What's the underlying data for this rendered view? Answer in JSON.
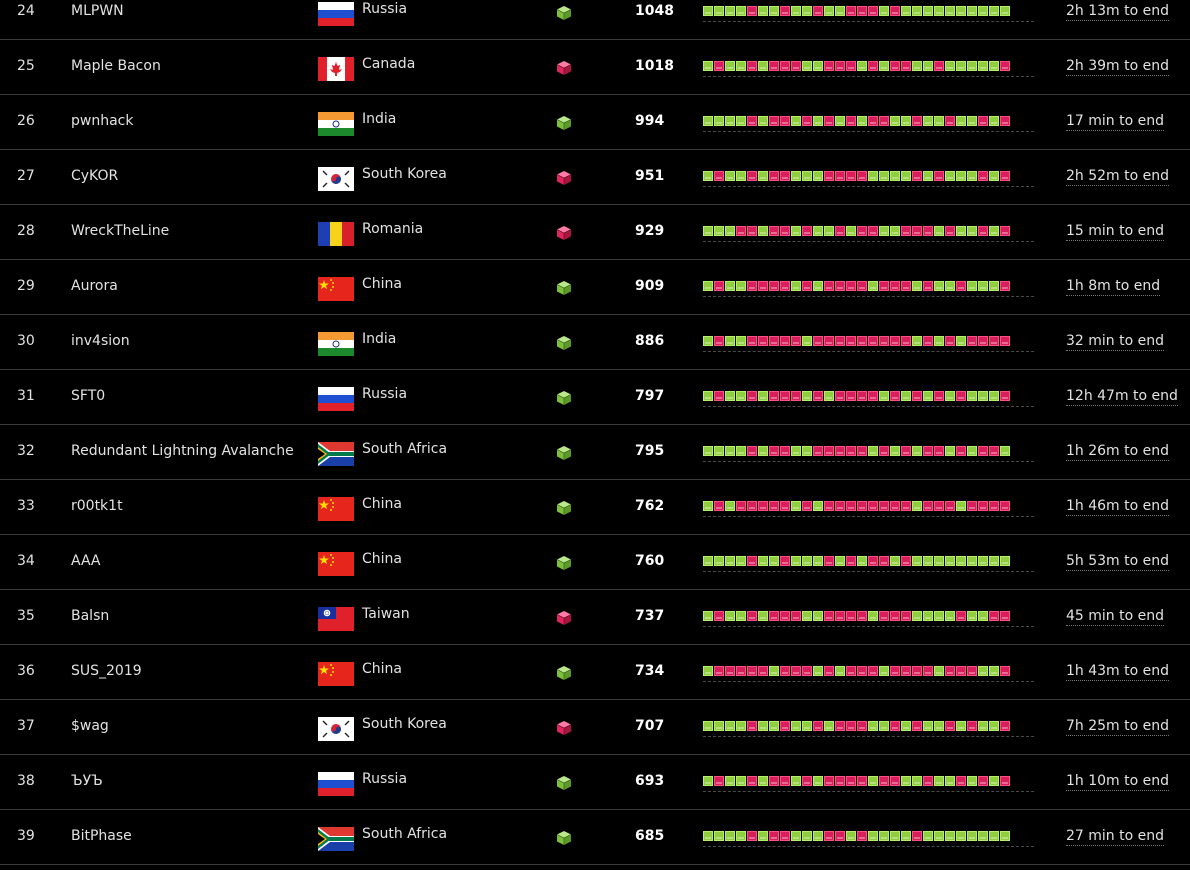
{
  "colors": {
    "background": "#000000",
    "up": "#8fce3e",
    "down": "#d81e5b",
    "text": "#e2e2e2"
  },
  "rows": [
    {
      "rank": "24",
      "team": "MLPWN",
      "country": "Russia",
      "flag": "russia",
      "cube": "green",
      "score": "1048",
      "eta": "2h 13m to end",
      "pattern": "GGGGRGGRGGRGGRRRGRGGGGGGGGGG"
    },
    {
      "rank": "25",
      "team": "Maple Bacon",
      "country": "Canada",
      "flag": "canada",
      "cube": "red",
      "score": "1018",
      "eta": "2h 39m to end",
      "pattern": "GRGGRGRRRGGRRRGRGRRGGRGGGGGR"
    },
    {
      "rank": "26",
      "team": "pwnhack",
      "country": "India",
      "flag": "india",
      "cube": "green",
      "score": "994",
      "eta": "17 min to end",
      "pattern": "GGGGRGRRGRGRGRGRRGGRGGRGGRGR"
    },
    {
      "rank": "27",
      "team": "CyKOR",
      "country": "South Korea",
      "flag": "south_korea",
      "cube": "red",
      "score": "951",
      "eta": "2h 52m to end",
      "pattern": "GRGGRGRRGGGRRRRGGGGRGRGGGRGR"
    },
    {
      "rank": "28",
      "team": "WreckTheLine",
      "country": "Romania",
      "flag": "romania",
      "cube": "red",
      "score": "929",
      "eta": "15 min to end",
      "pattern": "GGGRRGRRGRGGRGRRGGRRRGRGGRGR"
    },
    {
      "rank": "29",
      "team": "Aurora",
      "country": "China",
      "flag": "china",
      "cube": "green",
      "score": "909",
      "eta": "1h 8m to end",
      "pattern": "GRGGRRRRGRGRRRRGRRRGRGGRGGGR"
    },
    {
      "rank": "30",
      "team": "inv4sion",
      "country": "India",
      "flag": "india",
      "cube": "green",
      "score": "886",
      "eta": "32 min to end",
      "pattern": "GRGGRRRRRGRRRRRRRRRGRGRGRRRR"
    },
    {
      "rank": "31",
      "team": "SFT0",
      "country": "Russia",
      "flag": "russia",
      "cube": "green",
      "score": "797",
      "eta": "12h 47m to end",
      "pattern": "GRGGRGRRRGRGRRRRGRGRGRGRGGGR"
    },
    {
      "rank": "32",
      "team": "Redundant Lightning Avalanche",
      "country": "South Africa",
      "flag": "south_africa",
      "cube": "green",
      "score": "795",
      "eta": "1h 26m to end",
      "pattern": "GGGGRGRRGGRRRRRGRGRGRRGRGRRG"
    },
    {
      "rank": "33",
      "team": "r00tk1t",
      "country": "China",
      "flag": "china",
      "cube": "green",
      "score": "762",
      "eta": "1h 46m to end",
      "pattern": "GRGRRRRRGRGRRRRRRRRGRRRGRRRR"
    },
    {
      "rank": "34",
      "team": "AAA",
      "country": "China",
      "flag": "china",
      "cube": "green",
      "score": "760",
      "eta": "5h 53m to end",
      "pattern": "GGGGRGGRGGGRGRGRRGRGGGGGGGGG"
    },
    {
      "rank": "35",
      "team": "Balsn",
      "country": "Taiwan",
      "flag": "taiwan",
      "cube": "red",
      "score": "737",
      "eta": "45 min to end",
      "pattern": "GRGGRGRRRGGRRRRGRRRGGGGRGGRR"
    },
    {
      "rank": "36",
      "team": "SUS_2019",
      "country": "China",
      "flag": "china",
      "cube": "green",
      "score": "734",
      "eta": "1h 43m to end",
      "pattern": "GRRRRRGRRRGRGRRRGRRRRGRRRGGR"
    },
    {
      "rank": "37",
      "team": "$wag",
      "country": "South Korea",
      "flag": "south_korea",
      "cube": "red",
      "score": "707",
      "eta": "7h 25m to end",
      "pattern": "GGGGRGGRGGRGRRRGGRGRGGRGRGGR"
    },
    {
      "rank": "38",
      "team": "ЪУЪ",
      "country": "Russia",
      "flag": "russia",
      "cube": "green",
      "score": "693",
      "eta": "1h 10m to end",
      "pattern": "GRGGRGRRGRGRRRRGRRGGRGGRGRGR"
    },
    {
      "rank": "39",
      "team": "BitPhase",
      "country": "South Africa",
      "flag": "south_africa",
      "cube": "green",
      "score": "685",
      "eta": "27 min to end",
      "pattern": "GGGGRGRRGGGRRGRGGGGRGGGGGGGG"
    }
  ]
}
